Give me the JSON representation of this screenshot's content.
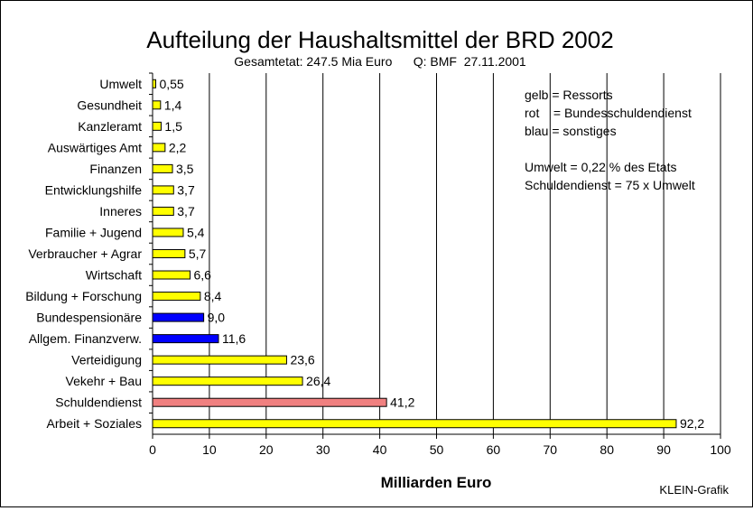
{
  "chart_data": {
    "type": "bar",
    "orientation": "horizontal",
    "title": "Aufteilung der Haushaltsmittel der BRD 2002",
    "subtitle": "Gesamtetat: 247.5 Mia Euro      Q: BMF  27.11.2001",
    "xlabel": "Milliarden Euro",
    "xlim": [
      0,
      100
    ],
    "xticks": [
      0,
      10,
      20,
      30,
      40,
      50,
      60,
      70,
      80,
      90,
      100
    ],
    "grid": "vertical",
    "categories": [
      "Umwelt",
      "Gesundheit",
      "Kanzleramt",
      "Auswärtiges Amt",
      "Finanzen",
      "Entwicklungshilfe",
      "Inneres",
      "Familie + Jugend",
      "Verbraucher + Agrar",
      "Wirtschaft",
      "Bildung + Forschung",
      "Bundespensionäre",
      "Allgem. Finanzverw.",
      "Verteidigung",
      "Vekehr + Bau",
      "Schuldendienst",
      "Arbeit + Soziales"
    ],
    "values": [
      0.55,
      1.4,
      1.5,
      2.2,
      3.5,
      3.7,
      3.7,
      5.4,
      5.7,
      6.6,
      8.4,
      9.0,
      11.6,
      23.6,
      26.4,
      41.2,
      92.2
    ],
    "value_labels": [
      "0,55",
      "1,4",
      "1,5",
      "2,2",
      "3,5",
      "3,7",
      "3,7",
      "5,4",
      "5,7",
      "6,6",
      "8,4",
      "9,0",
      "11,6",
      "23,6",
      "26,4",
      "41,2",
      "92,2"
    ],
    "bar_groups": [
      "gelb",
      "gelb",
      "gelb",
      "gelb",
      "gelb",
      "gelb",
      "gelb",
      "gelb",
      "gelb",
      "gelb",
      "gelb",
      "blau",
      "blau",
      "gelb",
      "gelb",
      "rot",
      "gelb"
    ],
    "colors": {
      "gelb": "#ffff00",
      "rot": "#f08080",
      "blau": "#0000ff"
    },
    "annotations": [
      "gelb = Ressorts",
      "rot    = Bundesschuldendienst",
      "blau = sonstiges",
      "Umwelt = 0,22 % des Etats",
      "Schuldendienst = 75 x Umwelt"
    ],
    "credit": "KLEIN-Grafik"
  }
}
